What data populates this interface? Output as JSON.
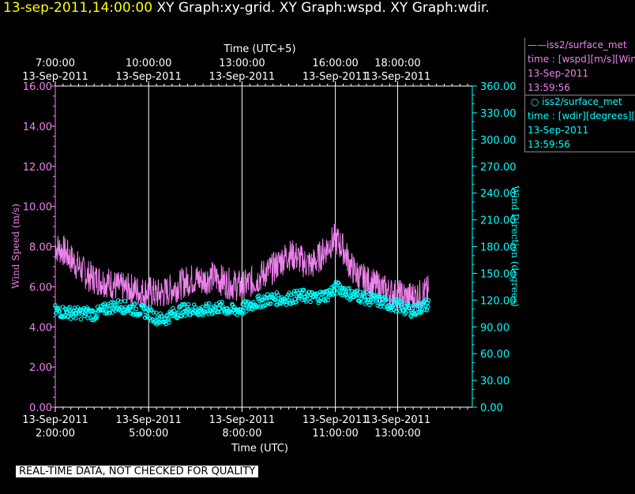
{
  "header": {
    "datetime": "13-sep-2011,14:00:00",
    "graphs": "XY Graph:xy-grid.  XY Graph:wspd.  XY Graph:wdir."
  },
  "legend": {
    "wspd": {
      "name": "iss2/surface_met",
      "desc": "time : [wspd][m/s][Wind",
      "date": "13-Sep-2011",
      "time": "13:59:56",
      "color": "#ee82ee"
    },
    "wdir": {
      "name": "iss2/surface_met",
      "desc": "time : [wdir][degrees][W",
      "date": "13-Sep-2011",
      "time": "13:59:56",
      "color": "#00ffff"
    }
  },
  "quality_notice": "REAL-TIME DATA, NOT CHECKED FOR QUALITY",
  "chart_data": {
    "type": "line",
    "top_axis": {
      "title": "Time (UTC+5)",
      "ticks": [
        {
          "t": 2,
          "time": "7:00:00",
          "date": "13-Sep-2011"
        },
        {
          "t": 5,
          "time": "10:00:00",
          "date": "13-Sep-2011"
        },
        {
          "t": 8,
          "time": "13:00:00",
          "date": "13-Sep-2011"
        },
        {
          "t": 11,
          "time": "16:00:00",
          "date": "13-Sep-2011"
        },
        {
          "t": 13,
          "time": "18:00:00",
          "date": "13-Sep-2011"
        }
      ]
    },
    "bottom_axis": {
      "title": "Time (UTC)",
      "ticks": [
        {
          "t": 2,
          "date": "13-Sep-2011",
          "time": "2:00:00"
        },
        {
          "t": 5,
          "date": "13-Sep-2011",
          "time": "5:00:00"
        },
        {
          "t": 8,
          "date": "13-Sep-2011",
          "time": "8:00:00"
        },
        {
          "t": 11,
          "date": "13-Sep-2011",
          "time": "11:00:00"
        },
        {
          "t": 13,
          "date": "13-Sep-2011",
          "time": "13:00:00"
        }
      ],
      "range_hours": [
        2,
        15.4
      ]
    },
    "left_axis": {
      "title": "Wind Speed (m/s)",
      "range": [
        0,
        16
      ],
      "ticks": [
        0,
        2,
        4,
        6,
        8,
        10,
        12,
        14,
        16
      ],
      "tick_labels": [
        "0.00",
        "2.00",
        "4.00",
        "6.00",
        "8.00",
        "10.00",
        "12.00",
        "14.00",
        "16.00"
      ]
    },
    "right_axis": {
      "title": "Wind Direction (degrees)",
      "range": [
        0,
        360
      ],
      "ticks": [
        0,
        30,
        60,
        90,
        120,
        150,
        180,
        210,
        240,
        270,
        300,
        330,
        360
      ],
      "tick_labels": [
        "0.00",
        "30.00",
        "60.00",
        "90.00",
        "120.00",
        "150.00",
        "180.00",
        "210.00",
        "240.00",
        "270.00",
        "300.00",
        "330.00",
        "360.00"
      ]
    },
    "grid": "vertical",
    "series": [
      {
        "name": "iss2/surface_met",
        "quantity": "wspd",
        "axis": "left",
        "color": "#ee82ee",
        "style": "line",
        "x_hours": [
          2.0,
          2.25,
          2.5,
          2.75,
          3.0,
          3.25,
          3.5,
          3.75,
          4.0,
          4.25,
          4.5,
          4.75,
          5.0,
          5.25,
          5.5,
          5.75,
          6.0,
          6.25,
          6.5,
          6.75,
          7.0,
          7.25,
          7.5,
          7.75,
          8.0,
          8.25,
          8.5,
          8.75,
          9.0,
          9.25,
          9.5,
          9.75,
          10.0,
          10.25,
          10.5,
          10.75,
          11.0,
          11.25,
          11.5,
          11.75,
          12.0,
          12.25,
          12.5,
          12.75,
          13.0,
          13.25,
          13.5,
          13.75,
          14.0
        ],
        "values": [
          8.0,
          7.8,
          7.4,
          7.0,
          6.6,
          6.4,
          6.3,
          6.2,
          6.0,
          5.9,
          5.9,
          5.7,
          5.8,
          5.6,
          5.7,
          5.9,
          6.1,
          6.3,
          6.4,
          6.3,
          6.5,
          6.4,
          6.2,
          6.1,
          6.0,
          6.2,
          6.4,
          6.7,
          6.9,
          7.3,
          7.6,
          7.5,
          7.2,
          7.1,
          7.5,
          8.0,
          8.4,
          7.9,
          7.0,
          6.5,
          6.3,
          6.1,
          5.9,
          5.7,
          5.6,
          5.5,
          5.5,
          5.6,
          5.8
        ]
      },
      {
        "name": "iss2/surface_met",
        "quantity": "wdir",
        "axis": "right",
        "color": "#00ffff",
        "style": "points",
        "x_hours": [
          2.0,
          2.25,
          2.5,
          2.75,
          3.0,
          3.25,
          3.5,
          3.75,
          4.0,
          4.25,
          4.5,
          4.75,
          5.0,
          5.25,
          5.5,
          5.75,
          6.0,
          6.25,
          6.5,
          6.75,
          7.0,
          7.25,
          7.5,
          7.75,
          8.0,
          8.25,
          8.5,
          8.75,
          9.0,
          9.25,
          9.5,
          9.75,
          10.0,
          10.25,
          10.5,
          10.75,
          11.0,
          11.25,
          11.5,
          11.75,
          12.0,
          12.25,
          12.5,
          12.75,
          13.0,
          13.25,
          13.5,
          13.75,
          14.0
        ],
        "values": [
          108,
          107,
          106,
          105,
          106,
          104,
          108,
          112,
          114,
          112,
          110,
          108,
          106,
          100,
          98,
          104,
          108,
          110,
          109,
          108,
          110,
          112,
          110,
          108,
          110,
          114,
          118,
          120,
          122,
          121,
          122,
          124,
          125,
          123,
          124,
          126,
          134,
          132,
          126,
          125,
          122,
          120,
          118,
          115,
          114,
          110,
          108,
          112,
          116
        ]
      }
    ]
  }
}
